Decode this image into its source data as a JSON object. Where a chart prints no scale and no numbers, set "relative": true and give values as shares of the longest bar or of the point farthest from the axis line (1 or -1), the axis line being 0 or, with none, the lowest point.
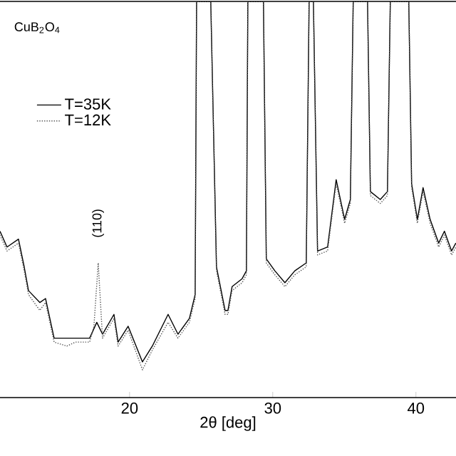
{
  "chart_data": {
    "type": "line",
    "relative": true,
    "xlabel": "2θ [deg]",
    "xlim": [
      10.95,
      42.8
    ],
    "xticks": [
      20,
      30,
      40
    ],
    "legend": "top left",
    "grid": false,
    "marker": "none",
    "annotations": [
      "CuB$_{2}$O$_{4}$",
      "(110)"
    ],
    "series": [
      {
        "name": "T=35K",
        "color": "#000000",
        "line_style": "solid",
        "x": [
          10.95,
          11.44,
          12.24,
          12.64,
          12.94,
          13.73,
          14.13,
          14.43,
          14.73,
          15.62,
          16.22,
          17.21,
          17.71,
          18.11,
          18.91,
          19.2,
          19.9,
          20.9,
          21.59,
          22.69,
          23.38,
          24.18,
          24.58,
          24.68,
          25.67,
          26.07,
          26.67,
          26.87,
          27.16,
          27.86,
          28.16,
          28.26,
          29.35,
          29.55,
          30.15,
          30.85,
          31.54,
          32.34,
          32.54,
          32.84,
          33.13,
          33.83,
          34.43,
          35.02,
          35.42,
          35.62,
          36.62,
          36.82,
          37.51,
          38.01,
          38.21,
          39.5,
          39.7,
          40.1,
          40.5,
          40.99,
          41.59,
          41.99,
          42.49,
          42.79
        ],
        "values": [
          0.42,
          0.38,
          0.4,
          0.33,
          0.27,
          0.24,
          0.25,
          0.2,
          0.15,
          0.15,
          0.15,
          0.15,
          0.19,
          0.16,
          0.21,
          0.14,
          0.18,
          0.09,
          0.13,
          0.21,
          0.16,
          0.2,
          0.26,
          1,
          1,
          0.33,
          0.22,
          0.22,
          0.28,
          0.3,
          0.32,
          1,
          1,
          0.35,
          0.32,
          0.29,
          0.32,
          0.34,
          1,
          1,
          0.37,
          0.38,
          0.55,
          0.45,
          0.5,
          1,
          1,
          0.52,
          0.5,
          0.52,
          1,
          1,
          0.54,
          0.45,
          0.53,
          0.45,
          0.39,
          0.42,
          0.37,
          0.39
        ]
      },
      {
        "name": "T=12K",
        "color": "#555555",
        "line_style": "dotted",
        "x": [
          10.95,
          11.44,
          12.24,
          12.64,
          12.94,
          13.73,
          14.13,
          14.43,
          14.73,
          15.62,
          16.22,
          17.21,
          17.51,
          17.81,
          18.11,
          18.91,
          19.2,
          19.9,
          20.9,
          21.59,
          22.69,
          23.38,
          24.18,
          24.58,
          24.68,
          25.67,
          26.07,
          26.67,
          26.87,
          27.16,
          27.86,
          28.16,
          28.26,
          29.35,
          29.55,
          30.15,
          30.85,
          31.54,
          32.34,
          32.54,
          32.84,
          33.13,
          33.83,
          34.43,
          35.02,
          35.42,
          35.62,
          36.62,
          36.82,
          37.51,
          38.01,
          38.21,
          39.5,
          39.7,
          40.1,
          40.5,
          40.99,
          41.59,
          41.99,
          42.49,
          42.79
        ],
        "values": [
          0.41,
          0.37,
          0.39,
          0.32,
          0.26,
          0.22,
          0.24,
          0.19,
          0.14,
          0.13,
          0.14,
          0.14,
          0.18,
          0.34,
          0.15,
          0.2,
          0.13,
          0.17,
          0.07,
          0.12,
          0.19,
          0.15,
          0.19,
          0.25,
          1,
          1,
          0.32,
          0.21,
          0.21,
          0.27,
          0.29,
          0.31,
          1,
          1,
          0.34,
          0.31,
          0.28,
          0.31,
          0.33,
          1,
          1,
          0.36,
          0.37,
          0.54,
          0.44,
          0.49,
          1,
          1,
          0.51,
          0.49,
          0.51,
          1,
          1,
          0.53,
          0.44,
          0.52,
          0.44,
          0.38,
          0.41,
          0.36,
          0.38
        ]
      }
    ]
  }
}
